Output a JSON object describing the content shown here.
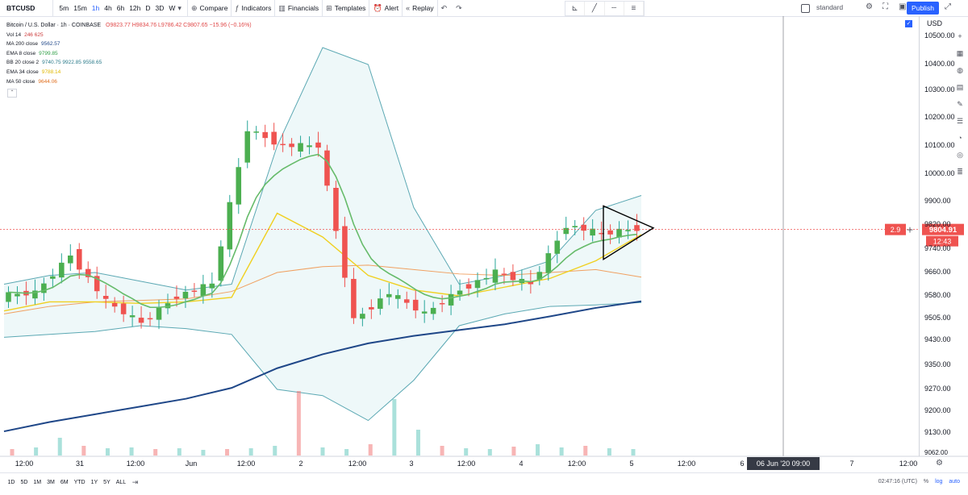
{
  "toolbar": {
    "symbol": "BTCUSD",
    "timeframes": [
      "5m",
      "15m",
      "1h",
      "4h",
      "6h",
      "12h",
      "D",
      "3D",
      "W"
    ],
    "active_timeframe": "1h",
    "compare": "Compare",
    "indicators": "Indicators",
    "financials": "Financials",
    "templates": "Templates",
    "alert": "Alert",
    "replay": "Replay",
    "layout": "standard",
    "publish": "Publish"
  },
  "legend": {
    "title": "Bitcoin / U.S. Dollar · 1h · COINBASE",
    "ohlc": "O9823.77 H9834.76 L9786.42 C9807.65 −15.96 (−0.16%)",
    "items": [
      {
        "label": "Vol 14",
        "value": "246 625",
        "color": "#cc3a3a"
      },
      {
        "label": "MA 200 close",
        "value": "9562.57",
        "color": "#1f4788"
      },
      {
        "label": "EMA 8 close",
        "value": "9799.85",
        "color": "#2e9e45"
      },
      {
        "label": "BB 20 close 2",
        "value": "9740.75  9922.85  9558.65",
        "color": "#2a7a8a"
      },
      {
        "label": "EMA 34 close",
        "value": "9788.14",
        "color": "#f0d020"
      },
      {
        "label": "MA 50 close",
        "value": "9644.06",
        "color": "#f08030"
      }
    ]
  },
  "price_labels": {
    "currency": "USD",
    "current_price": "9804.91",
    "countdown": "12:43",
    "crosshair_value": "2.9",
    "bottom_value": "9062.00"
  },
  "x_axis": {
    "crosshair_label": "06 Jun '20   09:00"
  },
  "bottom": {
    "ranges": [
      "1D",
      "5D",
      "1M",
      "3M",
      "6M",
      "YTD",
      "1Y",
      "5Y",
      "ALL"
    ],
    "clock": "02:47:16 (UTC)",
    "pct": "%",
    "log": "log",
    "auto": "auto"
  },
  "chart_data": {
    "type": "candlestick",
    "title": "Bitcoin / U.S. Dollar · 1h · COINBASE",
    "y_ticks": [
      9130,
      9200,
      9270,
      9350,
      9430,
      9505,
      9580,
      9660,
      9740,
      9820,
      9900,
      10000,
      10100,
      10200,
      10300,
      10400,
      10500
    ],
    "y_tick_labels": [
      "9130.00",
      "9200.00",
      "9270.00",
      "9350.00",
      "9430.00",
      "9505.00",
      "9580.00",
      "9660.00",
      "9740.00",
      "9820.00",
      "9900.00",
      "10000.00",
      "10100.00",
      "10200.00",
      "10300.00",
      "10400.00",
      "10500.00"
    ],
    "x_ticks": [
      "12:00",
      "31",
      "12:00",
      "Jun",
      "12:00",
      "2",
      "12:00",
      "3",
      "12:00",
      "4",
      "12:00",
      "5",
      "12:00",
      "6",
      "7",
      "12:00"
    ],
    "current_price": 9804.91,
    "segments": [
      {
        "from": 9580,
        "to": 9590
      },
      {
        "from": 9590,
        "to": 9720
      },
      {
        "from": 9720,
        "to": 9560
      },
      {
        "from": 9560,
        "to": 9490
      },
      {
        "from": 9490,
        "to": 9580
      },
      {
        "from": 9580,
        "to": 9620
      },
      {
        "from": 9620,
        "to": 10160
      },
      {
        "from": 10160,
        "to": 10100
      },
      {
        "from": 10100,
        "to": 10100
      },
      {
        "from": 10100,
        "to": 9500
      },
      {
        "from": 9500,
        "to": 9590
      },
      {
        "from": 9590,
        "to": 9520
      },
      {
        "from": 9520,
        "to": 9600
      },
      {
        "from": 9600,
        "to": 9660
      },
      {
        "from": 9660,
        "to": 9620
      },
      {
        "from": 9620,
        "to": 9820
      },
      {
        "from": 9820,
        "to": 9790
      },
      {
        "from": 9790,
        "to": 9808
      }
    ],
    "ma200": [
      9135,
      9165,
      9190,
      9215,
      9240,
      9275,
      9340,
      9385,
      9420,
      9445,
      9465,
      9485,
      9512,
      9540,
      9562
    ],
    "ema34": [
      9530,
      9560,
      9560,
      9555,
      9560,
      9575,
      9860,
      9780,
      9650,
      9600,
      9580,
      9610,
      9640,
      9700,
      9788
    ],
    "ma50": [
      9520,
      9545,
      9560,
      9565,
      9570,
      9595,
      9660,
      9680,
      9685,
      9670,
      9655,
      9650,
      9660,
      9670,
      9644
    ],
    "bb_upper": [
      9620,
      9650,
      9660,
      9630,
      9600,
      9620,
      10100,
      10460,
      10400,
      9880,
      9620,
      9650,
      9700,
      9870,
      9922
    ],
    "bb_lower": [
      9440,
      9450,
      9460,
      9480,
      9470,
      9450,
      9270,
      9250,
      9170,
      9300,
      9480,
      9520,
      9545,
      9550,
      9558
    ],
    "volume": [
      8,
      10,
      22,
      12,
      9,
      10,
      8,
      9,
      7,
      8,
      9,
      12,
      80,
      10,
      8,
      14,
      70,
      32,
      12,
      9,
      8,
      11,
      14,
      10,
      12,
      9,
      8
    ],
    "triangle_pattern": [
      {
        "price": 9885
      },
      {
        "price": 9810
      },
      {
        "price": 9705
      }
    ]
  }
}
